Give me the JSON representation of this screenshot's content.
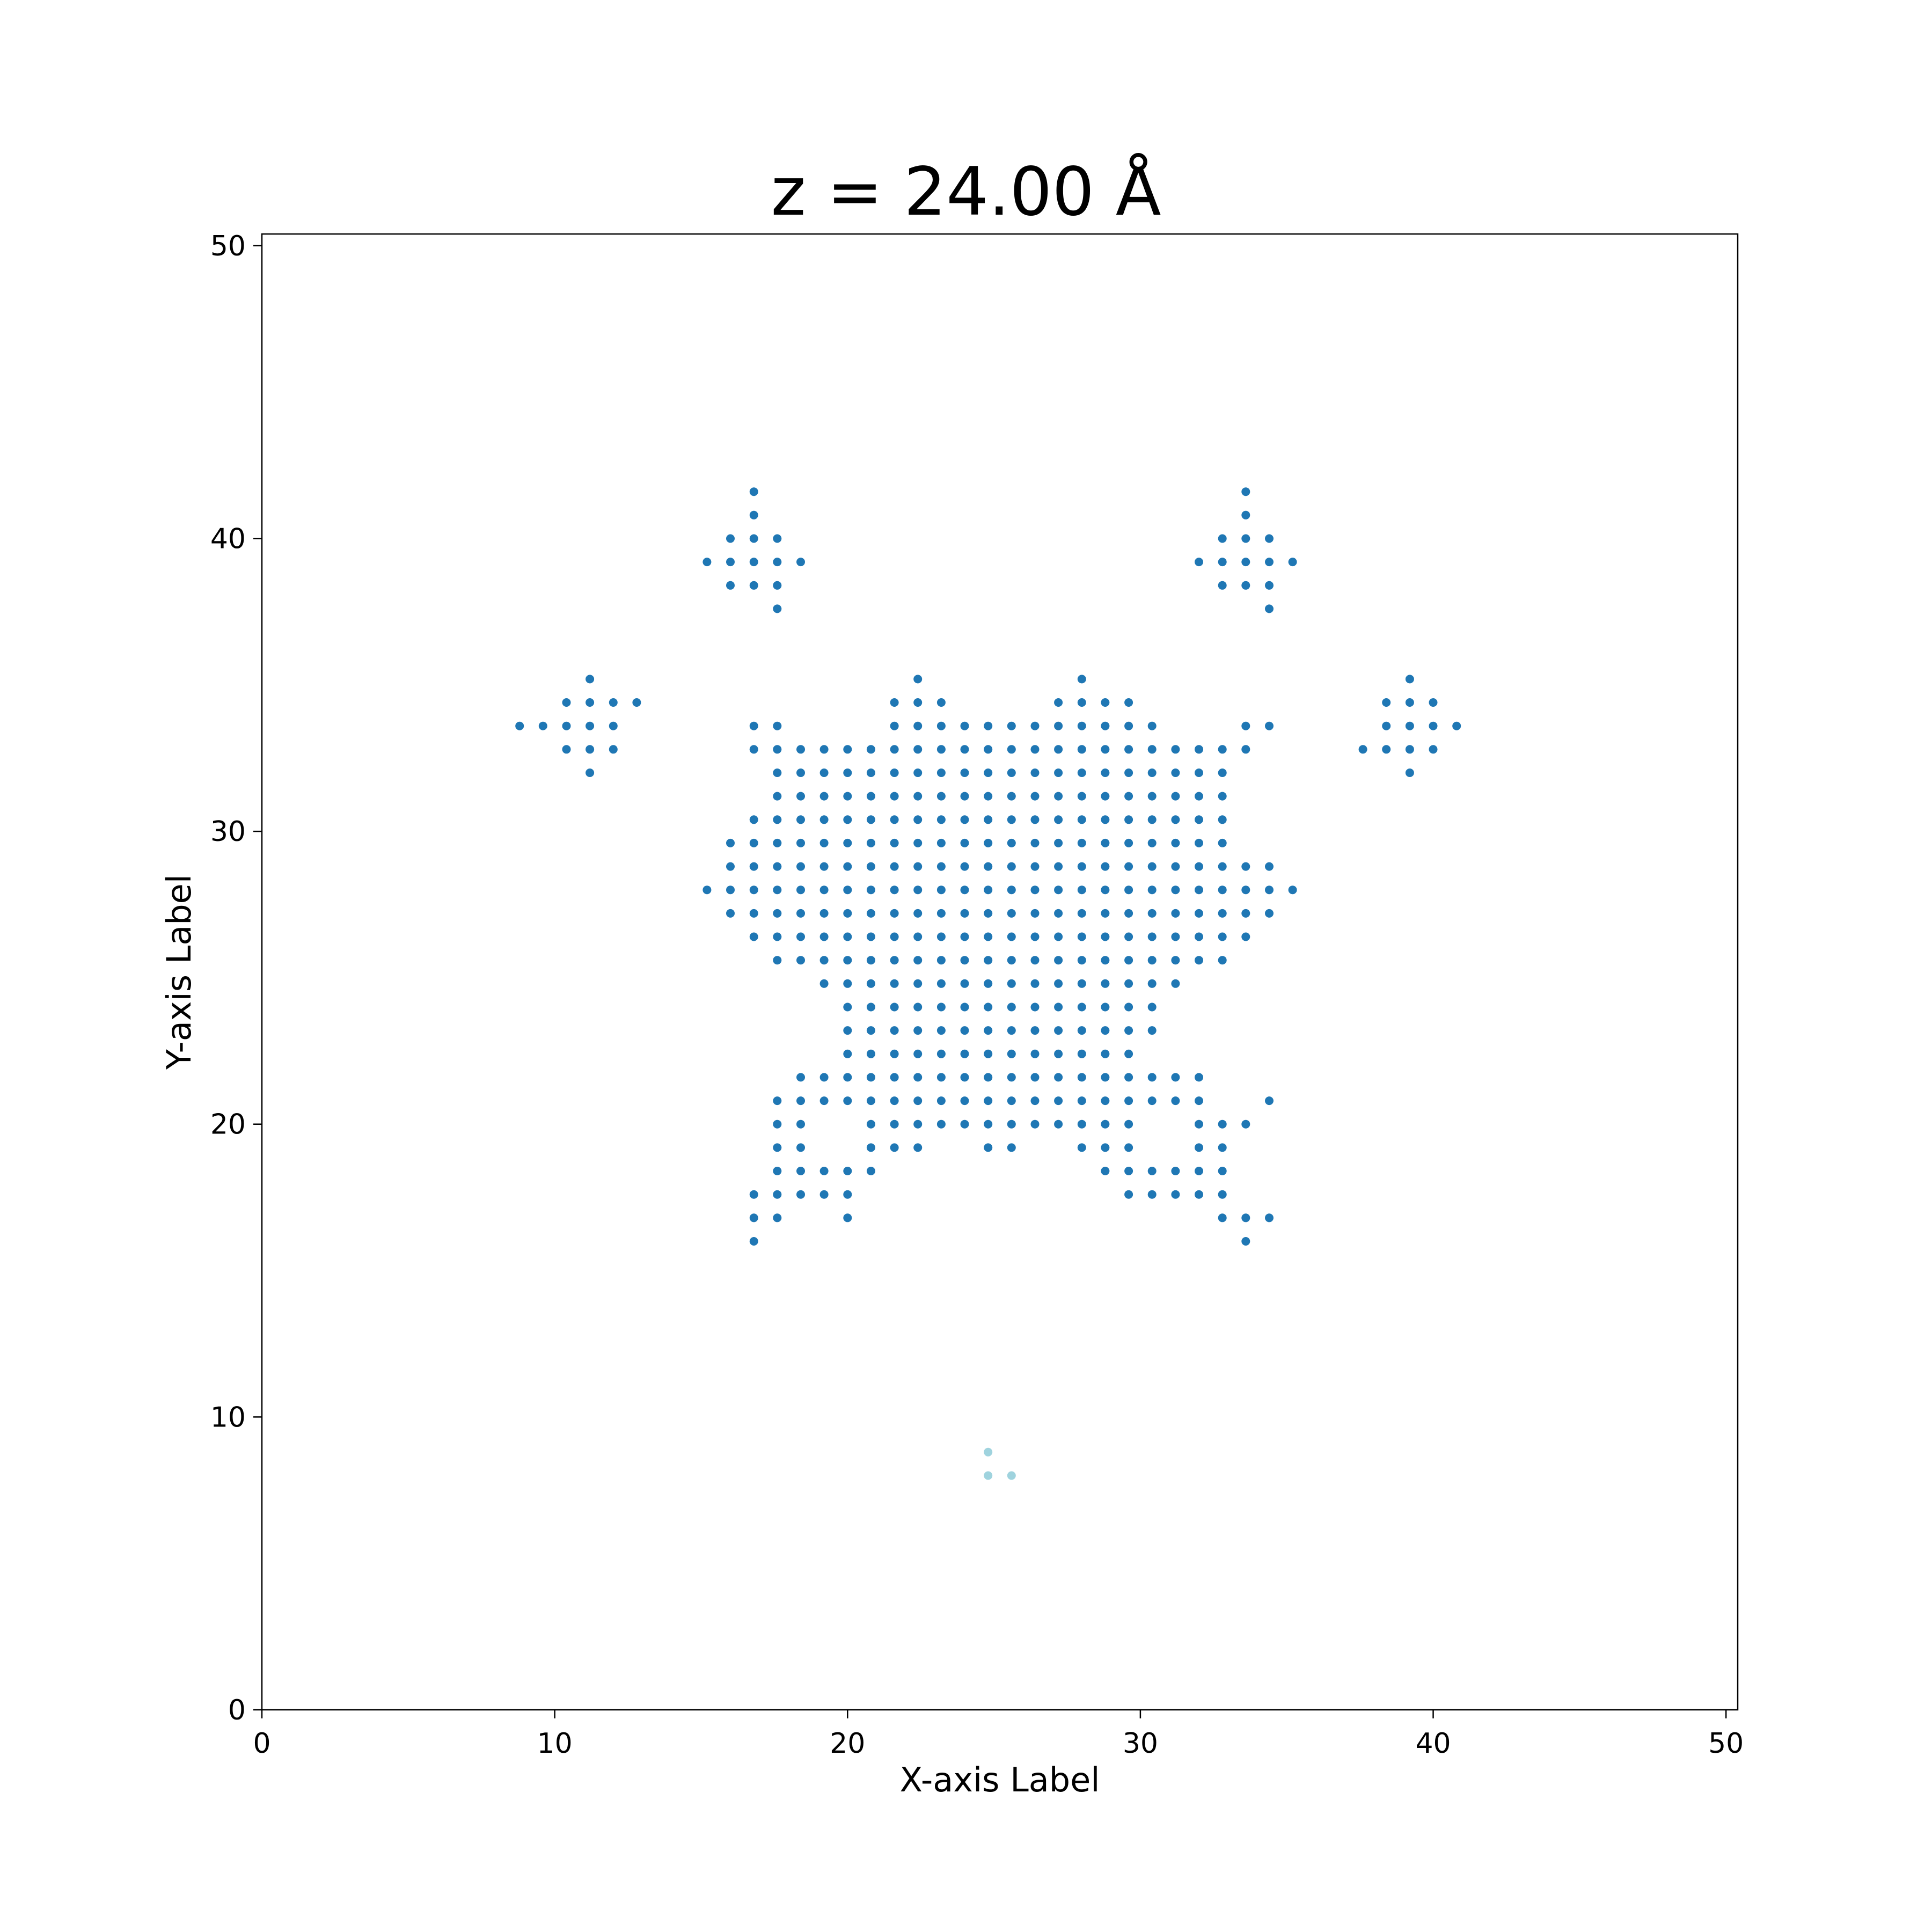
{
  "chart_data": {
    "type": "scatter",
    "title": "z = 24.00 Å",
    "xlabel": "X-axis Label",
    "ylabel": "Y-axis Label",
    "xlim": [
      0,
      50.4
    ],
    "ylim": [
      0,
      50.4
    ],
    "xticks": [
      0,
      10,
      20,
      30,
      40,
      50
    ],
    "yticks": [
      0,
      10,
      20,
      30,
      40,
      50
    ],
    "grid": false,
    "legend": "none",
    "grid_step": 0.8,
    "series": [
      {
        "color": "#1f77b4",
        "rows": [
          {
            "y": 41.6,
            "x": [
              16.8,
              33.6
            ]
          },
          {
            "y": 40.8,
            "x": [
              16.8,
              33.6
            ]
          },
          {
            "y": 40.0,
            "x": [
              16.0,
              16.8,
              17.6,
              32.8,
              33.6,
              34.4
            ]
          },
          {
            "y": 39.2,
            "x": [
              15.2,
              16.0,
              16.8,
              17.6,
              18.4,
              32.0,
              32.8,
              33.6,
              34.4,
              35.2
            ]
          },
          {
            "y": 38.4,
            "x": [
              16.0,
              16.8,
              17.6,
              32.8,
              33.6,
              34.4
            ]
          },
          {
            "y": 37.6,
            "x": [
              17.6,
              34.4
            ]
          },
          {
            "y": 35.2,
            "x": [
              11.2,
              22.4,
              28.0,
              39.2
            ]
          },
          {
            "y": 34.4,
            "x": [
              10.4,
              11.2,
              12.0,
              12.8,
              21.6,
              22.4,
              23.2,
              27.2,
              28.0,
              28.8,
              29.6,
              38.4,
              39.2,
              40.0
            ]
          },
          {
            "y": 33.6,
            "x": [
              8.8,
              9.6,
              10.4,
              11.2,
              12.0,
              16.8,
              17.6,
              21.6,
              22.4,
              23.2,
              24.0,
              24.8,
              25.6,
              26.4,
              27.2,
              28.0,
              28.8,
              29.6,
              30.4,
              33.6,
              34.4,
              38.4,
              39.2,
              40.0,
              40.8
            ]
          },
          {
            "y": 32.8,
            "x": [
              10.4,
              11.2,
              12.0,
              16.8,
              17.6,
              18.4,
              19.2,
              20.0,
              20.8,
              21.6,
              22.4,
              23.2,
              24.0,
              24.8,
              25.6,
              26.4,
              27.2,
              28.0,
              28.8,
              29.6,
              30.4,
              31.2,
              32.0,
              32.8,
              33.6,
              37.6,
              38.4,
              39.2,
              40.0
            ]
          },
          {
            "y": 32.0,
            "x": [
              11.2,
              17.6,
              18.4,
              19.2,
              20.0,
              20.8,
              21.6,
              22.4,
              23.2,
              24.0,
              24.8,
              25.6,
              26.4,
              27.2,
              28.0,
              28.8,
              29.6,
              30.4,
              31.2,
              32.0,
              32.8,
              39.2
            ]
          },
          {
            "y": 31.2,
            "x": [
              17.6,
              18.4,
              19.2,
              20.0,
              20.8,
              21.6,
              22.4,
              23.2,
              24.0,
              24.8,
              25.6,
              26.4,
              27.2,
              28.0,
              28.8,
              29.6,
              30.4,
              31.2,
              32.0,
              32.8
            ]
          },
          {
            "y": 30.4,
            "x": [
              16.8,
              17.6,
              18.4,
              19.2,
              20.0,
              20.8,
              21.6,
              22.4,
              23.2,
              24.0,
              24.8,
              25.6,
              26.4,
              27.2,
              28.0,
              28.8,
              29.6,
              30.4,
              31.2,
              32.0,
              32.8
            ]
          },
          {
            "y": 29.6,
            "x": [
              16.0,
              16.8,
              17.6,
              18.4,
              19.2,
              20.0,
              20.8,
              21.6,
              22.4,
              23.2,
              24.0,
              24.8,
              25.6,
              26.4,
              27.2,
              28.0,
              28.8,
              29.6,
              30.4,
              31.2,
              32.0,
              32.8
            ]
          },
          {
            "y": 28.8,
            "x": [
              16.0,
              16.8,
              17.6,
              18.4,
              19.2,
              20.0,
              20.8,
              21.6,
              22.4,
              23.2,
              24.0,
              24.8,
              25.6,
              26.4,
              27.2,
              28.0,
              28.8,
              29.6,
              30.4,
              31.2,
              32.0,
              32.8,
              33.6,
              34.4
            ]
          },
          {
            "y": 28.0,
            "x": [
              15.2,
              16.0,
              16.8,
              17.6,
              18.4,
              19.2,
              20.0,
              20.8,
              21.6,
              22.4,
              23.2,
              24.0,
              24.8,
              25.6,
              26.4,
              27.2,
              28.0,
              28.8,
              29.6,
              30.4,
              31.2,
              32.0,
              32.8,
              33.6,
              34.4,
              35.2
            ]
          },
          {
            "y": 27.2,
            "x": [
              16.0,
              16.8,
              17.6,
              18.4,
              19.2,
              20.0,
              20.8,
              21.6,
              22.4,
              23.2,
              24.0,
              24.8,
              25.6,
              26.4,
              27.2,
              28.0,
              28.8,
              29.6,
              30.4,
              31.2,
              32.0,
              32.8,
              33.6,
              34.4
            ]
          },
          {
            "y": 26.4,
            "x": [
              16.8,
              17.6,
              18.4,
              19.2,
              20.0,
              20.8,
              21.6,
              22.4,
              23.2,
              24.0,
              24.8,
              25.6,
              26.4,
              27.2,
              28.0,
              28.8,
              29.6,
              30.4,
              31.2,
              32.0,
              32.8,
              33.6
            ]
          },
          {
            "y": 25.6,
            "x": [
              17.6,
              18.4,
              19.2,
              20.0,
              20.8,
              21.6,
              22.4,
              23.2,
              24.0,
              24.8,
              25.6,
              26.4,
              27.2,
              28.0,
              28.8,
              29.6,
              30.4,
              31.2,
              32.0,
              32.8
            ]
          },
          {
            "y": 24.8,
            "x": [
              19.2,
              20.0,
              20.8,
              21.6,
              22.4,
              23.2,
              24.0,
              24.8,
              25.6,
              26.4,
              27.2,
              28.0,
              28.8,
              29.6,
              30.4,
              31.2
            ]
          },
          {
            "y": 24.0,
            "x": [
              20.0,
              20.8,
              21.6,
              22.4,
              23.2,
              24.0,
              24.8,
              25.6,
              26.4,
              27.2,
              28.0,
              28.8,
              29.6,
              30.4
            ]
          },
          {
            "y": 23.2,
            "x": [
              20.0,
              20.8,
              21.6,
              22.4,
              23.2,
              24.0,
              24.8,
              25.6,
              26.4,
              27.2,
              28.0,
              28.8,
              29.6,
              30.4
            ]
          },
          {
            "y": 22.4,
            "x": [
              20.0,
              20.8,
              21.6,
              22.4,
              23.2,
              24.0,
              24.8,
              25.6,
              26.4,
              27.2,
              28.0,
              28.8,
              29.6
            ]
          },
          {
            "y": 21.6,
            "x": [
              18.4,
              19.2,
              20.0,
              20.8,
              21.6,
              22.4,
              23.2,
              24.0,
              24.8,
              25.6,
              26.4,
              27.2,
              28.0,
              28.8,
              29.6,
              30.4,
              31.2,
              32.0
            ]
          },
          {
            "y": 20.8,
            "x": [
              17.6,
              18.4,
              19.2,
              20.0,
              20.8,
              21.6,
              22.4,
              23.2,
              24.0,
              24.8,
              25.6,
              26.4,
              27.2,
              28.0,
              28.8,
              29.6,
              30.4,
              31.2,
              32.0,
              34.4
            ]
          },
          {
            "y": 20.0,
            "x": [
              17.6,
              18.4,
              20.8,
              21.6,
              22.4,
              23.2,
              24.0,
              24.8,
              25.6,
              26.4,
              27.2,
              28.0,
              28.8,
              29.6,
              32.0,
              32.8,
              33.6
            ]
          },
          {
            "y": 19.2,
            "x": [
              17.6,
              18.4,
              20.8,
              21.6,
              22.4,
              24.8,
              25.6,
              28.0,
              28.8,
              29.6,
              32.0,
              32.8
            ]
          },
          {
            "y": 18.4,
            "x": [
              17.6,
              18.4,
              19.2,
              20.0,
              20.8,
              28.8,
              29.6,
              30.4,
              31.2,
              32.0,
              32.8
            ]
          },
          {
            "y": 17.6,
            "x": [
              16.8,
              17.6,
              18.4,
              19.2,
              20.0,
              29.6,
              30.4,
              31.2,
              32.0,
              32.8
            ]
          },
          {
            "y": 16.8,
            "x": [
              16.8,
              17.6,
              20.0,
              32.8,
              33.6,
              34.4
            ]
          },
          {
            "y": 16.0,
            "x": [
              16.8,
              33.6
            ]
          }
        ]
      },
      {
        "color": "#9fd3de",
        "rows": [
          {
            "y": 8.8,
            "x": [
              24.8
            ]
          },
          {
            "y": 8.0,
            "x": [
              24.8,
              25.6
            ]
          }
        ]
      }
    ]
  }
}
